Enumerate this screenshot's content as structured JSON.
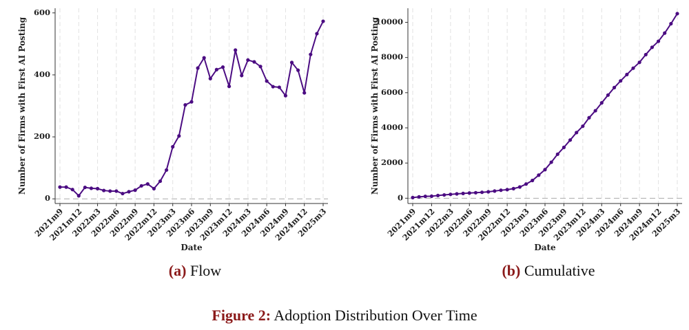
{
  "chart_data": [
    {
      "type": "line",
      "caption_label": "(a)",
      "caption": "Flow",
      "x_label": "Date",
      "y_label": "Number of Firms with First AI Posting",
      "categories": [
        "2021m9",
        null,
        null,
        "2021m12",
        null,
        null,
        "2022m3",
        null,
        null,
        "2022m6",
        null,
        null,
        "2022m9",
        null,
        null,
        "2022m12",
        null,
        null,
        "2023m3",
        null,
        null,
        "2023m6",
        null,
        null,
        "2023m9",
        null,
        null,
        "2023m12",
        null,
        null,
        "2024m3",
        null,
        null,
        "2024m6",
        null,
        null,
        "2024m9",
        null,
        null,
        "2024m12",
        null,
        null,
        "2025m3"
      ],
      "values": [
        38,
        38,
        30,
        10,
        37,
        34,
        33,
        27,
        25,
        25,
        17,
        23,
        28,
        42,
        48,
        33,
        57,
        93,
        168,
        203,
        303,
        313,
        422,
        455,
        388,
        417,
        425,
        363,
        480,
        398,
        448,
        442,
        427,
        380,
        362,
        360,
        333,
        440,
        415,
        342,
        466,
        533,
        573
      ],
      "color": "#4b0c82",
      "ylim": [
        -15,
        615
      ],
      "yticks": [
        0,
        200,
        400,
        600
      ],
      "hline": 0,
      "grid": true
    },
    {
      "type": "line",
      "caption_label": "(b)",
      "caption": "Cumulative",
      "x_label": "Date",
      "y_label": "Number of Firms with First AI Posting",
      "categories": [
        "2021m9",
        null,
        null,
        "2021m12",
        null,
        null,
        "2022m3",
        null,
        null,
        "2022m6",
        null,
        null,
        "2022m9",
        null,
        null,
        "2022m12",
        null,
        null,
        "2023m3",
        null,
        null,
        "2023m6",
        null,
        null,
        "2023m9",
        null,
        null,
        "2023m12",
        null,
        null,
        "2024m3",
        null,
        null,
        "2024m6",
        null,
        null,
        "2024m9",
        null,
        null,
        "2024m12",
        null,
        null,
        "2025m3"
      ],
      "values": [
        38,
        76,
        106,
        116,
        153,
        187,
        220,
        247,
        272,
        297,
        314,
        337,
        365,
        407,
        455,
        488,
        545,
        638,
        806,
        1009,
        1312,
        1625,
        2047,
        2502,
        2890,
        3307,
        3732,
        4095,
        4575,
        4973,
        5421,
        5863,
        6290,
        6670,
        7032,
        7392,
        7725,
        8165,
        8580,
        8922,
        9388,
        9921,
        10494
      ],
      "color": "#4b0c82",
      "ylim": [
        -300,
        10800
      ],
      "yticks": [
        0,
        2000,
        4000,
        6000,
        8000,
        10000
      ],
      "hline": 0,
      "grid": true
    }
  ],
  "figure_label": "Figure 2:",
  "figure_caption": "Adoption Distribution Over Time"
}
